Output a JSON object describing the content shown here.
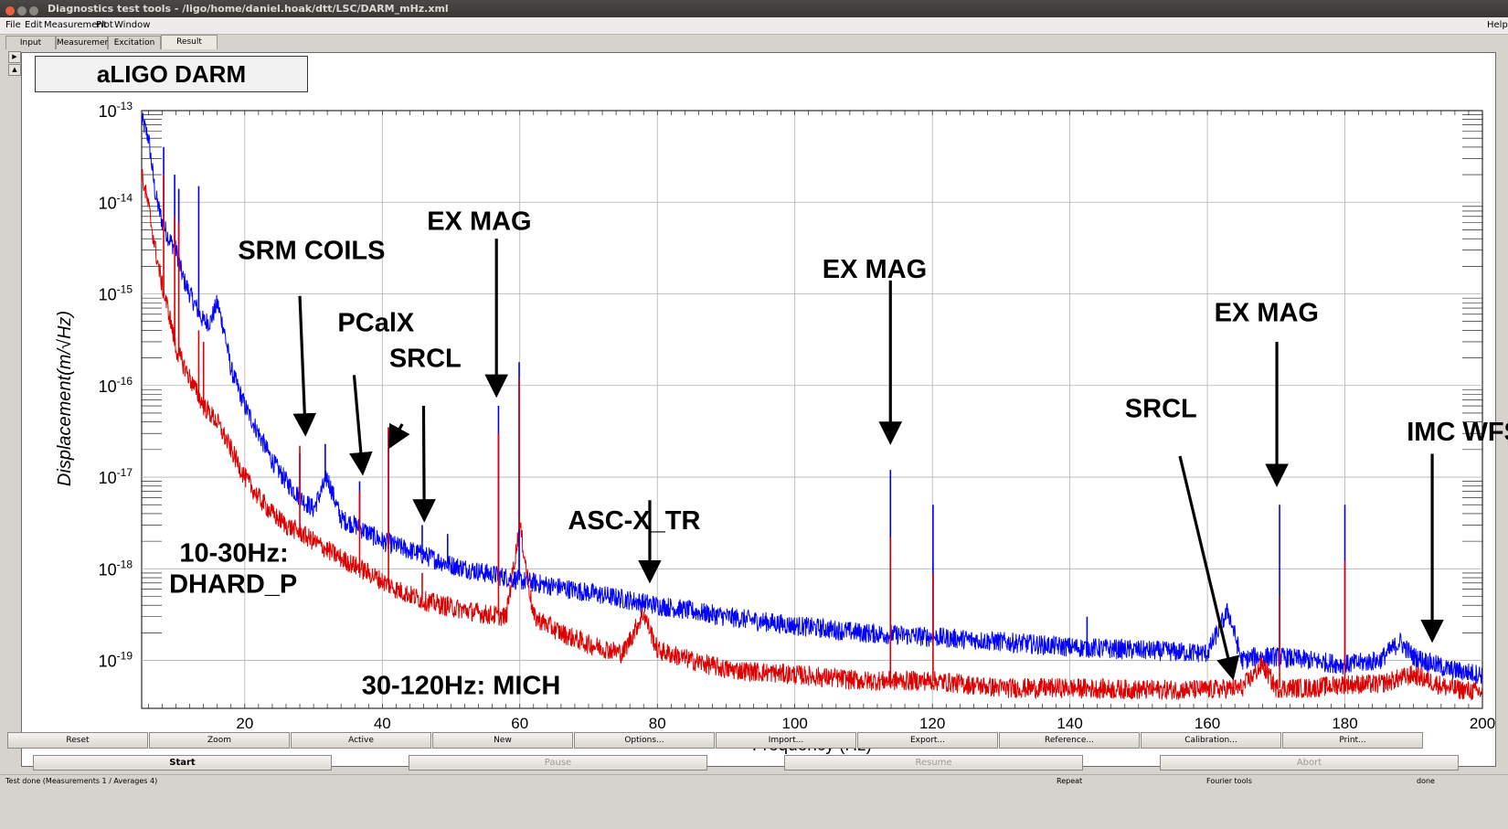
{
  "window": {
    "title": "Diagnostics test tools - /ligo/home/daniel.hoak/dtt/LSC/DARM_mHz.xml"
  },
  "menu": {
    "file": "File",
    "edit": "Edit",
    "measurement": "Measurement",
    "plot": "Plot",
    "window": "Window",
    "help": "Help"
  },
  "tabs": [
    "Input",
    "Measurement",
    "Excitation",
    "Result"
  ],
  "plot_title": "aLIGO DARM",
  "chart_data": {
    "type": "line",
    "xlabel": "Frequency (Hz)",
    "ylabel": "Displacement(m/√Hz)",
    "xlim": [
      5,
      200
    ],
    "ylim": [
      3e-20,
      1e-13
    ],
    "yscale": "log",
    "grid": true,
    "x_ticks": [
      "20",
      "40",
      "60",
      "80",
      "100",
      "120",
      "140",
      "160",
      "180",
      "200"
    ],
    "y_ticks": [
      {
        "base": "10",
        "exp": "-13"
      },
      {
        "base": "10",
        "exp": "-14"
      },
      {
        "base": "10",
        "exp": "-15"
      },
      {
        "base": "10",
        "exp": "-16"
      },
      {
        "base": "10",
        "exp": "-17"
      },
      {
        "base": "10",
        "exp": "-18"
      },
      {
        "base": "10",
        "exp": "-19"
      }
    ],
    "series": [
      {
        "color": "#0000ff",
        "x": [
          5,
          6,
          7,
          8,
          9,
          10,
          11,
          12,
          13,
          14,
          15,
          16,
          17,
          18,
          20,
          22,
          24,
          26,
          28,
          30,
          32,
          34,
          36,
          40,
          45,
          50,
          55,
          60,
          70,
          80,
          90,
          100,
          110,
          120,
          130,
          140,
          150,
          160,
          163,
          165,
          167,
          170,
          175,
          180,
          185,
          188,
          190,
          195,
          200
        ],
        "y": [
          8e-14,
          5e-14,
          1.2e-14,
          6e-15,
          4e-15,
          3e-15,
          1.5e-15,
          1e-15,
          7e-16,
          5e-16,
          5e-16,
          8e-16,
          4e-16,
          1.5e-16,
          6e-17,
          3e-17,
          1.5e-17,
          9e-18,
          6e-18,
          4.5e-18,
          1e-17,
          3.5e-18,
          3e-18,
          2e-18,
          1.5e-18,
          1.1e-18,
          9e-19,
          7.5e-19,
          5.5e-19,
          4e-19,
          3e-19,
          2.4e-19,
          2e-19,
          1.8e-19,
          1.6e-19,
          1.4e-19,
          1.3e-19,
          1.2e-19,
          3.5e-19,
          1e-19,
          1.1e-19,
          1.1e-19,
          1e-19,
          9e-20,
          1e-19,
          1.6e-19,
          1.1e-19,
          8e-20,
          7e-20
        ]
      },
      {
        "color": "#dd0000",
        "x": [
          5,
          6,
          7,
          8,
          9,
          10,
          12,
          14,
          16,
          18,
          20,
          22,
          24,
          26,
          28,
          30,
          34,
          38,
          42,
          46,
          50,
          55,
          58,
          60,
          62,
          66,
          70,
          75,
          78,
          80,
          85,
          90,
          100,
          110,
          120,
          130,
          140,
          150,
          160,
          165,
          168,
          170,
          175,
          180,
          185,
          190,
          195,
          200
        ],
        "y": [
          2e-14,
          9e-15,
          3e-15,
          1.2e-15,
          6e-16,
          2.5e-16,
          1.2e-16,
          6e-17,
          4e-17,
          2e-17,
          1e-17,
          6e-18,
          4e-18,
          3e-18,
          2.5e-18,
          2e-18,
          1.3e-18,
          9e-19,
          6e-19,
          4.5e-19,
          3.8e-19,
          3.2e-19,
          3e-19,
          3e-18,
          3e-19,
          2e-19,
          1.5e-19,
          1.2e-19,
          3.3e-19,
          1.3e-19,
          1e-19,
          8e-20,
          7e-20,
          6e-20,
          6e-20,
          5e-20,
          5e-20,
          4.8e-20,
          4.8e-20,
          5e-20,
          9e-20,
          5e-20,
          5e-20,
          5.5e-20,
          5.5e-20,
          7e-20,
          5e-20,
          4.5e-20
        ]
      }
    ],
    "spikes_blue": [
      [
        8.2,
        4e-14
      ],
      [
        9.8,
        2e-14
      ],
      [
        10.4,
        1.4e-14
      ],
      [
        13.3,
        1.5e-14
      ],
      [
        25.4,
        1e-17
      ],
      [
        28,
        1.8e-17
      ],
      [
        31.7,
        2.3e-17
      ],
      [
        36.7,
        9e-18
      ],
      [
        40.9,
        3.5e-17
      ],
      [
        45.8,
        3e-18
      ],
      [
        49.5,
        2.4e-18
      ],
      [
        56.9,
        6e-17
      ],
      [
        59.9,
        1.8e-16
      ],
      [
        113.9,
        1.2e-17
      ],
      [
        120.1,
        5e-18
      ],
      [
        142.5,
        3e-19
      ],
      [
        170.5,
        5e-18
      ],
      [
        180,
        5e-18
      ],
      [
        192.5,
        1.1e-19
      ]
    ],
    "spikes_red": [
      [
        8.2,
        2e-14
      ],
      [
        9.8,
        7e-15
      ],
      [
        10.4,
        6e-15
      ],
      [
        13.3,
        4e-16
      ],
      [
        14,
        3e-16
      ],
      [
        28,
        2.2e-17
      ],
      [
        36.7,
        7e-18
      ],
      [
        40.9,
        3.5e-17
      ],
      [
        45.8,
        9e-19
      ],
      [
        49.5,
        5e-19
      ],
      [
        56.9,
        3e-17
      ],
      [
        59.9,
        1.2e-16
      ],
      [
        113.9,
        2.2e-18
      ],
      [
        120.1,
        9e-19
      ],
      [
        170.5,
        5e-19
      ],
      [
        180,
        1.2e-18
      ]
    ],
    "annotations": [
      {
        "text": "SRM COILS",
        "x": 19,
        "y": 2.4e-15
      },
      {
        "text": "PCalX",
        "x": 33.5,
        "y": 3.9e-16
      },
      {
        "text": "SRCL",
        "x": 41,
        "y": 1.6e-16
      },
      {
        "text": "EX MAG",
        "x": 46.5,
        "y": 5e-15
      },
      {
        "text": "ASC-X_TR",
        "x": 67,
        "y": 2.7e-18
      },
      {
        "text": "EX MAG",
        "x": 104,
        "y": 1.5e-15
      },
      {
        "text": "EX MAG",
        "x": 161,
        "y": 5e-16
      },
      {
        "text": "SRCL",
        "x": 148,
        "y": 4.5e-17
      },
      {
        "text": "IMC WFS",
        "x": 189,
        "y": 2.5e-17
      },
      {
        "text": "10-30Hz:",
        "x": 10.5,
        "y": 1.2e-18
      },
      {
        "text": "DHARD_P",
        "x": 9,
        "y": 5.5e-19
      },
      {
        "text": "30-120Hz: MICH",
        "x": 37,
        "y": 4.3e-20
      }
    ],
    "arrows": [
      {
        "from": [
          28,
          9.5e-16
        ],
        "to": [
          28.8,
          3.2e-17
        ]
      },
      {
        "from": [
          35.9,
          1.3e-16
        ],
        "to": [
          37.1,
          1.2e-17
        ]
      },
      {
        "from": [
          42.9,
          3.8e-17
        ],
        "to": [
          41.3,
          2.3e-17
        ]
      },
      {
        "from": [
          46,
          6e-17
        ],
        "to": [
          46.1,
          3.7e-18
        ]
      },
      {
        "from": [
          56.6,
          4e-15
        ],
        "to": [
          56.6,
          8.5e-17
        ]
      },
      {
        "from": [
          78.9,
          5.6e-18
        ],
        "to": [
          78.9,
          8e-19
        ]
      },
      {
        "from": [
          113.9,
          1.4e-15
        ],
        "to": [
          113.9,
          2.6e-17
        ]
      },
      {
        "from": [
          156,
          1.7e-17
        ],
        "to": [
          163.6,
          7e-20
        ]
      },
      {
        "from": [
          170.1,
          3e-16
        ],
        "to": [
          170.1,
          9e-18
        ]
      },
      {
        "from": [
          192.7,
          1.8e-17
        ],
        "to": [
          192.7,
          1.8e-19
        ]
      }
    ]
  },
  "buttons_row1": [
    "Reset",
    "Zoom",
    "Active",
    "New",
    "Options...",
    "Import...",
    "Export...",
    "Reference...",
    "Calibration...",
    "Print..."
  ],
  "buttons_row2": {
    "start": "Start",
    "pause": "Pause",
    "resume": "Resume",
    "abort": "Abort"
  },
  "status": {
    "message": "Test done (Measurements 1 / Averages 4)",
    "repeat": "Repeat",
    "fourier": "Fourier tools",
    "state": "done"
  }
}
